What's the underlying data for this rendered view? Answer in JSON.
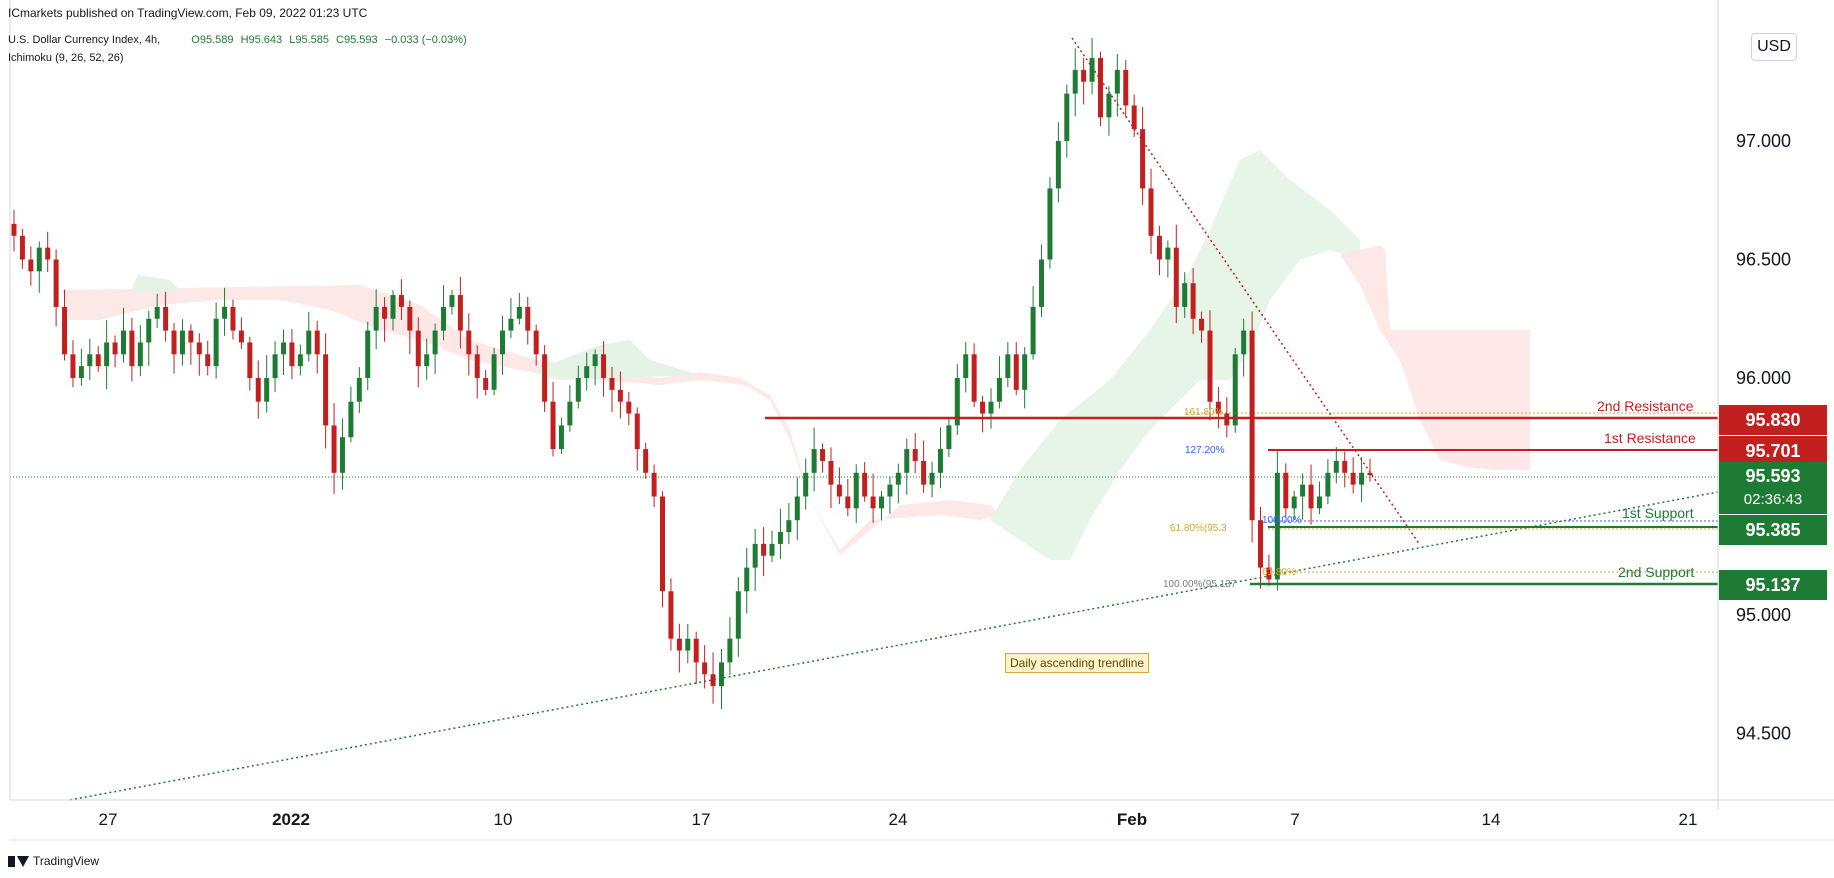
{
  "header": {
    "publisher": "ICmarkets published on TradingView.com, Feb 09, 2022 01:23 UTC",
    "symbol": "U.S. Dollar Currency Index, 4h,",
    "indicator": "Ichimoku (9, 26, 52, 26)",
    "ohlc": {
      "o": "O95.589",
      "h": "H95.643",
      "l": "L95.585",
      "c": "C95.593",
      "chg": "−0.033 (−0.03%)"
    }
  },
  "currency_button": "USD",
  "footer": {
    "brand": "TradingView"
  },
  "annotation": "Daily ascending trendline",
  "levels": {
    "r2": {
      "label": "2nd Resistance",
      "price": "95.830"
    },
    "r1": {
      "label": "1st Resistance",
      "price": "95.701"
    },
    "s1": {
      "label": "1st Support",
      "price": "95.385"
    },
    "s2": {
      "label": "2nd Support",
      "price": "95.137"
    },
    "last": {
      "price": "95.593",
      "countdown": "02:36:43"
    }
  },
  "fib_labels": {
    "f1618": "161.80%",
    "f1272": "127.20%",
    "f618": "61.80%(95.3",
    "f100a": "100.00%",
    "f100": "100.00%(95.137",
    "f618b": "61.80%"
  },
  "colors": {
    "bull": "#1e7b34",
    "bear": "#c2201f",
    "resistance": "#c2201f",
    "support": "#1e7b34",
    "cloud_bull": "#e4f3e6",
    "cloud_bear": "#fde4e4"
  },
  "chart_data": {
    "type": "candlestick",
    "interval": "4h",
    "x_ticks": [
      "27",
      "2022",
      "10",
      "17",
      "24",
      "Feb",
      "7",
      "14",
      "21"
    ],
    "y_ticks": [
      "94.500",
      "95.000",
      "95.500",
      "96.000",
      "96.500",
      "97.000"
    ],
    "ylim": [
      94.2,
      97.5
    ],
    "grid": false,
    "candles_note": "approximate closes read from chart, Dec 23 2021 – Feb 9 2022",
    "closes": [
      96.6,
      96.5,
      96.45,
      96.55,
      96.5,
      96.3,
      96.1,
      96.0,
      96.05,
      96.1,
      96.05,
      96.15,
      96.1,
      96.2,
      96.05,
      96.15,
      96.25,
      96.3,
      96.2,
      96.1,
      96.2,
      96.15,
      96.1,
      96.05,
      96.25,
      96.3,
      96.2,
      96.15,
      96.0,
      95.9,
      96.0,
      96.1,
      96.15,
      96.05,
      96.1,
      96.2,
      96.1,
      95.8,
      95.6,
      95.75,
      95.9,
      96.0,
      96.2,
      96.3,
      96.25,
      96.35,
      96.3,
      96.2,
      96.05,
      96.1,
      96.2,
      96.3,
      96.35,
      96.2,
      96.1,
      96.0,
      95.95,
      96.1,
      96.2,
      96.25,
      96.3,
      96.2,
      96.1,
      95.9,
      95.7,
      95.8,
      95.9,
      96.0,
      96.05,
      96.1,
      96.0,
      95.95,
      95.9,
      95.85,
      95.7,
      95.6,
      95.5,
      95.1,
      94.9,
      94.85,
      94.9,
      94.8,
      94.75,
      94.7,
      94.8,
      94.9,
      95.1,
      95.2,
      95.3,
      95.25,
      95.3,
      95.35,
      95.4,
      95.5,
      95.6,
      95.7,
      95.65,
      95.55,
      95.5,
      95.45,
      95.6,
      95.5,
      95.45,
      95.5,
      95.55,
      95.6,
      95.7,
      95.65,
      95.55,
      95.6,
      95.7,
      95.8,
      96.0,
      96.1,
      95.9,
      95.85,
      95.9,
      96.0,
      96.1,
      95.95,
      96.1,
      96.3,
      96.5,
      96.8,
      97.0,
      97.2,
      97.3,
      97.25,
      97.35,
      97.1,
      97.2,
      97.3,
      97.15,
      97.05,
      96.8,
      96.6,
      96.5,
      96.55,
      96.3,
      96.4,
      96.25,
      96.2,
      95.9,
      95.85,
      95.8,
      96.1,
      96.2,
      95.4,
      95.2,
      95.15,
      95.6,
      95.45,
      95.5,
      95.55,
      95.45,
      95.5,
      95.6,
      95.65,
      95.6,
      95.55,
      95.6,
      95.59
    ],
    "series": [
      {
        "name": "U.S. Dollar Currency Index, 4h",
        "last": 95.593
      }
    ],
    "horizontal_levels": [
      {
        "name": "2nd Resistance",
        "price": 95.83
      },
      {
        "name": "1st Resistance",
        "price": 95.701
      },
      {
        "name": "1st Support",
        "price": 95.385
      },
      {
        "name": "2nd Support",
        "price": 95.137
      }
    ],
    "last_price": 95.593
  }
}
